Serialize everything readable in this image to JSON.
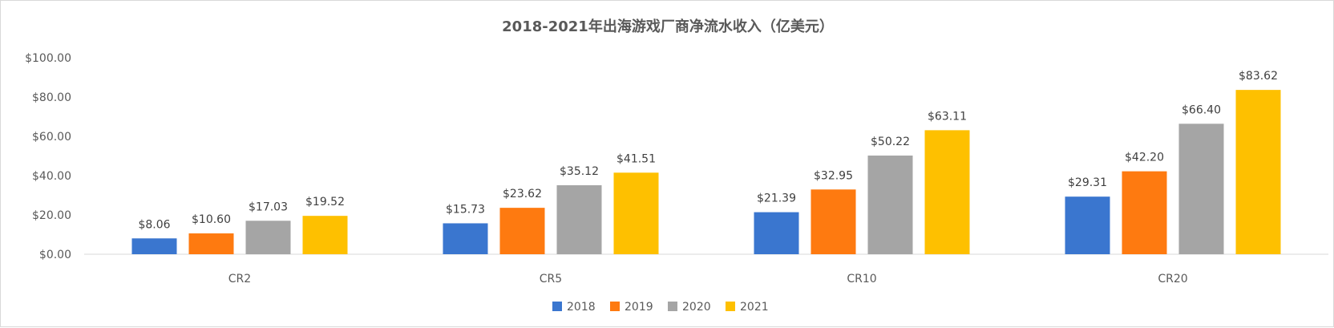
{
  "chart_data": {
    "type": "bar",
    "title": "2018-2021年出海游戏厂商净流水收入（亿美元）",
    "xlabel": "",
    "ylabel": "",
    "categories": [
      "CR2",
      "CR5",
      "CR10",
      "CR20"
    ],
    "series": [
      {
        "name": "2018",
        "color": "#3a76cf",
        "values": [
          8.06,
          15.73,
          21.39,
          29.31
        ],
        "labels": [
          "$8.06",
          "$15.73",
          "$21.39",
          "$29.31"
        ]
      },
      {
        "name": "2019",
        "color": "#fe7a10",
        "values": [
          10.6,
          23.62,
          32.95,
          42.2
        ],
        "labels": [
          "$10.60",
          "$23.62",
          "$32.95",
          "$42.20"
        ]
      },
      {
        "name": "2020",
        "color": "#a5a5a5",
        "values": [
          17.03,
          35.12,
          50.22,
          66.4
        ],
        "labels": [
          "$17.03",
          "$35.12",
          "$50.22",
          "$66.40"
        ]
      },
      {
        "name": "2021",
        "color": "#fec000",
        "values": [
          19.52,
          41.51,
          63.11,
          83.62
        ],
        "labels": [
          "$19.52",
          "$41.51",
          "$63.11",
          "$83.62"
        ]
      }
    ],
    "ylim": [
      0,
      100
    ],
    "yticks": [
      0,
      20,
      40,
      60,
      80,
      100
    ],
    "ytick_labels": [
      "$0.00",
      "$20.00",
      "$40.00",
      "$60.00",
      "$80.00",
      "$100.00"
    ],
    "grid": false,
    "legend_position": "bottom-center"
  }
}
